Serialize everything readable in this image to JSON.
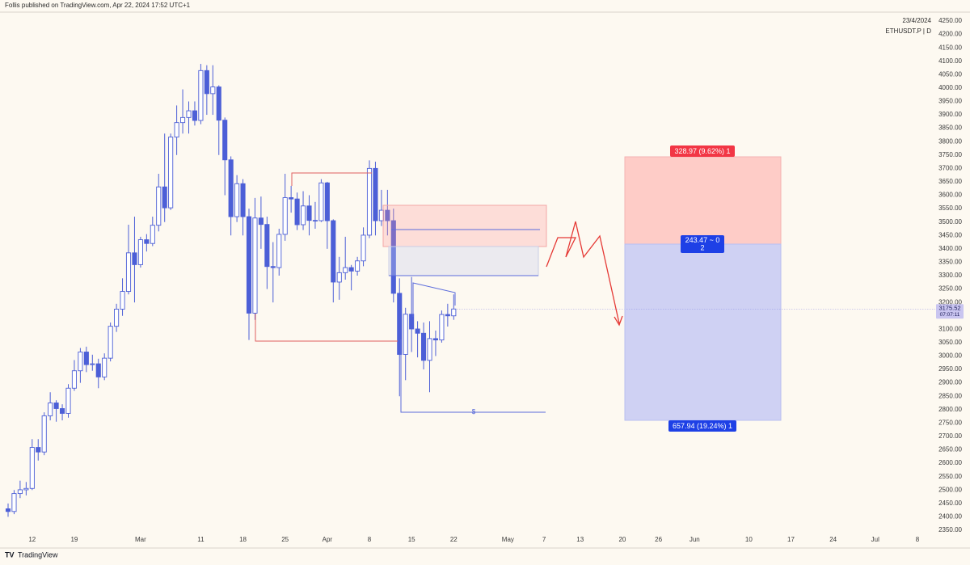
{
  "chart_data": {
    "type": "candlestick",
    "title": "ETHUSDT.P | D",
    "subtitle": "23/4/2024",
    "publisher": "Follis published on TradingView.com, Apr 22, 2024 17:52 UTC+1",
    "brand": "TradingView",
    "color": "#4c5fd7",
    "up_fill": "#ffffff",
    "grid": false,
    "ylim": [
      2325,
      4275
    ],
    "yticks": [
      {
        "value": 4250,
        "label": "4250.00"
      },
      {
        "value": 4200,
        "label": "4200.00"
      },
      {
        "value": 4150,
        "label": "4150.00"
      },
      {
        "value": 4100,
        "label": "4100.00"
      },
      {
        "value": 4050,
        "label": "4050.00"
      },
      {
        "value": 4000,
        "label": "4000.00"
      },
      {
        "value": 3950,
        "label": "3950.00"
      },
      {
        "value": 3900,
        "label": "3900.00"
      },
      {
        "value": 3850,
        "label": "3850.00"
      },
      {
        "value": 3800,
        "label": "3800.00"
      },
      {
        "value": 3750,
        "label": "3750.00"
      },
      {
        "value": 3700,
        "label": "3700.00"
      },
      {
        "value": 3650,
        "label": "3650.00"
      },
      {
        "value": 3600,
        "label": "3600.00"
      },
      {
        "value": 3550,
        "label": "3550.00"
      },
      {
        "value": 3500,
        "label": "3500.00"
      },
      {
        "value": 3450,
        "label": "3450.00"
      },
      {
        "value": 3400,
        "label": "3400.00"
      },
      {
        "value": 3350,
        "label": "3350.00"
      },
      {
        "value": 3300,
        "label": "3300.00"
      },
      {
        "value": 3250,
        "label": "3250.00"
      },
      {
        "value": 3200,
        "label": "3200.00"
      },
      {
        "value": 3150,
        "label": "3150.00"
      },
      {
        "value": 3100,
        "label": "3100.00"
      },
      {
        "value": 3050,
        "label": "3050.00"
      },
      {
        "value": 3000,
        "label": "3000.00"
      },
      {
        "value": 2950,
        "label": "2950.00"
      },
      {
        "value": 2900,
        "label": "2900.00"
      },
      {
        "value": 2850,
        "label": "2850.00"
      },
      {
        "value": 2800,
        "label": "2800.00"
      },
      {
        "value": 2750,
        "label": "2750.00"
      },
      {
        "value": 2700,
        "label": "2700.00"
      },
      {
        "value": 2650,
        "label": "2650.00"
      },
      {
        "value": 2600,
        "label": "2600.00"
      },
      {
        "value": 2550,
        "label": "2550.00"
      },
      {
        "value": 2500,
        "label": "2500.00"
      },
      {
        "value": 2450,
        "label": "2450.00"
      },
      {
        "value": 2400,
        "label": "2400.00"
      },
      {
        "value": 2350,
        "label": "2350.00"
      }
    ],
    "categories": [
      null,
      null,
      null,
      null,
      "12",
      null,
      null,
      null,
      null,
      null,
      null,
      "19",
      null,
      null,
      null,
      null,
      null,
      null,
      null,
      null,
      null,
      null,
      "Mar",
      null,
      null,
      null,
      null,
      null,
      null,
      null,
      null,
      null,
      "11",
      null,
      null,
      null,
      null,
      null,
      null,
      "18",
      null,
      null,
      null,
      null,
      null,
      null,
      "25",
      null,
      null,
      null,
      null,
      null,
      null,
      "Apr",
      null,
      null,
      null,
      null,
      null,
      null,
      "8",
      null,
      null,
      null,
      null,
      null,
      null,
      "15",
      null,
      null,
      null,
      null,
      null,
      null,
      "22",
      null,
      null,
      null,
      null,
      null,
      null,
      null,
      null,
      "May",
      null,
      null,
      null,
      null,
      null,
      "7",
      null,
      null,
      null,
      null,
      null,
      "13",
      null,
      null,
      null,
      null,
      null,
      null,
      "20",
      null,
      null,
      null,
      null,
      null,
      "26",
      null,
      null,
      null,
      null,
      null,
      "Jun",
      null,
      null,
      null,
      null,
      null,
      null,
      null,
      null,
      "10",
      null,
      null,
      null,
      null,
      null,
      null,
      "17",
      null,
      null,
      null,
      null,
      null,
      null,
      "24",
      null,
      null,
      null,
      null,
      null,
      null,
      "Jul",
      null,
      null,
      null,
      null,
      null,
      null,
      "8",
      null,
      null
    ],
    "open": [
      2430,
      2420,
      2487,
      2501,
      2506,
      2659,
      2642,
      2777,
      2825,
      2804,
      2786,
      2880,
      2945,
      3015,
      2968,
      2971,
      2922,
      2992,
      3111,
      3175,
      3241,
      3385,
      3341,
      3434,
      3420,
      3488,
      3631,
      3553,
      3817,
      3871,
      3890,
      3915,
      3879,
      4065,
      3979,
      4004,
      3880,
      3732,
      3520,
      3643,
      3520,
      3160,
      3515,
      3491,
      3334,
      3330,
      3454,
      3591,
      3586,
      3490,
      3560,
      3506,
      3505,
      3646,
      3505,
      3276,
      3311,
      3330,
      3317,
      3355,
      3451,
      3700,
      3505,
      3544,
      3505,
      3234,
      3006,
      3156,
      3101,
      3085,
      2984,
      3065,
      3060,
      3155,
      3150,
      null,
      null,
      null,
      null,
      null,
      null,
      null,
      null,
      null,
      null,
      null,
      null,
      null,
      null,
      null,
      null,
      null,
      null,
      null,
      null,
      null,
      null,
      null,
      null,
      null,
      null,
      null,
      null,
      null,
      null,
      null,
      null,
      null,
      null,
      null,
      null,
      null,
      null,
      null,
      null,
      null,
      null,
      null,
      null,
      null,
      null,
      null,
      null,
      null,
      null,
      null,
      null,
      null,
      null,
      null,
      null,
      null,
      null,
      null,
      null,
      null,
      null,
      null,
      null,
      null,
      null,
      null,
      null,
      null,
      null,
      null,
      null,
      null,
      null,
      null,
      null,
      null,
      null,
      null
    ],
    "high": [
      2450,
      2500,
      2535,
      2530,
      2690,
      2690,
      2790,
      2865,
      2835,
      2820,
      2895,
      2985,
      3030,
      3035,
      3005,
      2990,
      3010,
      3125,
      3195,
      3290,
      3490,
      3520,
      3445,
      3455,
      3520,
      3680,
      3830,
      3830,
      3935,
      3995,
      3950,
      3950,
      4090,
      4085,
      4085,
      4010,
      3890,
      3745,
      3675,
      3660,
      3550,
      3590,
      3595,
      3520,
      3425,
      3475,
      3680,
      3635,
      3610,
      3615,
      3600,
      3575,
      3660,
      3650,
      3510,
      3370,
      3445,
      3340,
      3370,
      3480,
      3730,
      3725,
      3620,
      3620,
      3550,
      3290,
      3180,
      3295,
      3130,
      3125,
      3130,
      3095,
      3170,
      3195,
      3230,
      null,
      null,
      null,
      null,
      null,
      null,
      null,
      null,
      null,
      null,
      null,
      null,
      null,
      null,
      null,
      null,
      null,
      null,
      null,
      null,
      null,
      null,
      null,
      null,
      null,
      null,
      null,
      null,
      null,
      null,
      null,
      null,
      null,
      null,
      null,
      null,
      null,
      null,
      null,
      null,
      null,
      null,
      null,
      null,
      null,
      null,
      null,
      null,
      null,
      null,
      null,
      null,
      null,
      null,
      null,
      null,
      null,
      null,
      null,
      null,
      null,
      null,
      null,
      null,
      null,
      null,
      null,
      null,
      null,
      null,
      null,
      null,
      null,
      null,
      null,
      null,
      null,
      null,
      null
    ],
    "low": [
      2400,
      2410,
      2470,
      2480,
      2500,
      2610,
      2630,
      2760,
      2755,
      2760,
      2770,
      2870,
      2900,
      2940,
      2945,
      2880,
      2910,
      2980,
      3090,
      3150,
      3230,
      3200,
      3330,
      3390,
      3410,
      3465,
      3500,
      3545,
      3750,
      3830,
      3830,
      3860,
      3865,
      3900,
      3900,
      3750,
      3600,
      3450,
      3500,
      3450,
      3060,
      3135,
      3400,
      3250,
      3200,
      3300,
      3430,
      3535,
      3470,
      3470,
      3450,
      3475,
      3500,
      3400,
      3200,
      3210,
      3285,
      3245,
      3300,
      3335,
      3440,
      3450,
      3485,
      3450,
      3200,
      2850,
      2910,
      3015,
      2995,
      2950,
      2865,
      3000,
      3050,
      3110,
      3135,
      null,
      null,
      null,
      null,
      null,
      null,
      null,
      null,
      null,
      null,
      null,
      null,
      null,
      null,
      null,
      null,
      null,
      null,
      null,
      null,
      null,
      null,
      null,
      null,
      null,
      null,
      null,
      null,
      null,
      null,
      null,
      null,
      null,
      null,
      null,
      null,
      null,
      null,
      null,
      null,
      null,
      null,
      null,
      null,
      null,
      null,
      null,
      null,
      null,
      null,
      null,
      null,
      null,
      null,
      null,
      null,
      null,
      null,
      null,
      null,
      null,
      null,
      null,
      null,
      null,
      null,
      null,
      null,
      null,
      null,
      null,
      null,
      null,
      null,
      null,
      null,
      null,
      null,
      null
    ],
    "close": [
      2420,
      2487,
      2501,
      2506,
      2659,
      2642,
      2777,
      2825,
      2804,
      2786,
      2880,
      2945,
      3015,
      2968,
      2971,
      2922,
      2992,
      3111,
      3175,
      3241,
      3385,
      3341,
      3434,
      3420,
      3488,
      3631,
      3553,
      3817,
      3871,
      3890,
      3915,
      3879,
      4065,
      3979,
      4004,
      3880,
      3732,
      3520,
      3643,
      3520,
      3160,
      3515,
      3491,
      3334,
      3330,
      3454,
      3591,
      3586,
      3490,
      3560,
      3506,
      3505,
      3646,
      3505,
      3276,
      3311,
      3330,
      3317,
      3355,
      3451,
      3700,
      3505,
      3544,
      3505,
      3234,
      3006,
      3156,
      3101,
      3085,
      2984,
      3065,
      3060,
      3155,
      3150,
      3175.52,
      null,
      null,
      null,
      null,
      null,
      null,
      null,
      null,
      null,
      null,
      null,
      null,
      null,
      null,
      null,
      null,
      null,
      null,
      null,
      null,
      null,
      null,
      null,
      null,
      null,
      null,
      null,
      null,
      null,
      null,
      null,
      null,
      null,
      null,
      null,
      null,
      null,
      null,
      null,
      null,
      null,
      null,
      null,
      null,
      null,
      null,
      null,
      null,
      null,
      null,
      null,
      null,
      null,
      null,
      null,
      null,
      null,
      null,
      null,
      null,
      null,
      null,
      null,
      null,
      null,
      null,
      null,
      null,
      null,
      null,
      null,
      null,
      null,
      null,
      null,
      null,
      null,
      null,
      null
    ],
    "annotations": {
      "stop_label": "328.97 (9.62%) 1",
      "entry_label": "243.47 ~ 0",
      "entry_qty": "2",
      "target_label": "657.94 (19.24%) 1",
      "liquidity_mark": "$",
      "countdown": "07:07:11"
    }
  }
}
